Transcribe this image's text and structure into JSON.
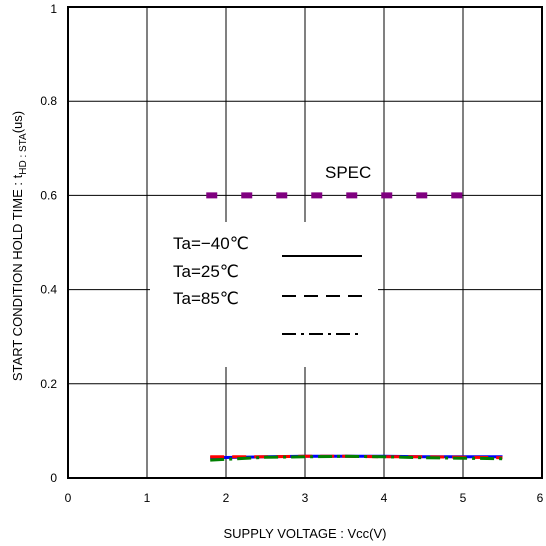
{
  "chart_data": {
    "type": "line",
    "title": "",
    "xlabel": "SUPPLY VOLTAGE : Vcc(V)",
    "ylabel": {
      "prefix": "START CONDITION HOLD TIME : t",
      "subscript": "HD : STA",
      "suffix": "(us)"
    },
    "xlim": [
      0,
      6
    ],
    "ylim": [
      0,
      1
    ],
    "xticks": [
      0,
      1,
      2,
      3,
      4,
      5,
      6
    ],
    "xtick_labels": [
      "0",
      "1",
      "2",
      "3",
      "4",
      "5",
      "6"
    ],
    "yticks": [
      0,
      0.2,
      0.4,
      0.6,
      0.8,
      1
    ],
    "ytick_labels": [
      "0",
      "0.2",
      "0.4",
      "0.6",
      "0.8",
      "1"
    ],
    "grid": true,
    "spec": {
      "label": "SPEC",
      "x": [
        1.75,
        5.25
      ],
      "y": [
        0.6,
        0.6
      ],
      "color": "#800080"
    },
    "legend": {
      "position": "center-left",
      "entries": [
        "Ta=−40℃",
        "Ta=25℃",
        "Ta=85℃"
      ],
      "styles": [
        "solid",
        "dashed",
        "dashdot"
      ]
    },
    "series": [
      {
        "name": "Ta=−40℃",
        "color": "#0000ff",
        "style": "solid",
        "x": [
          1.8,
          2.5,
          3.0,
          3.5,
          4.0,
          4.5,
          5.0,
          5.5
        ],
        "y": [
          0.043,
          0.045,
          0.046,
          0.046,
          0.046,
          0.045,
          0.045,
          0.045
        ]
      },
      {
        "name": "Ta=25℃",
        "color": "#ff0000",
        "style": "dashed",
        "x": [
          1.8,
          2.5,
          3.0,
          3.5,
          4.0,
          4.5,
          5.0,
          5.5
        ],
        "y": [
          0.045,
          0.045,
          0.046,
          0.046,
          0.045,
          0.045,
          0.044,
          0.043
        ]
      },
      {
        "name": "Ta=85℃",
        "color": "#008000",
        "style": "dashdot",
        "x": [
          1.8,
          2.5,
          3.0,
          3.5,
          4.0,
          4.5,
          5.0,
          5.5
        ],
        "y": [
          0.038,
          0.044,
          0.045,
          0.046,
          0.045,
          0.043,
          0.042,
          0.041
        ]
      }
    ]
  }
}
